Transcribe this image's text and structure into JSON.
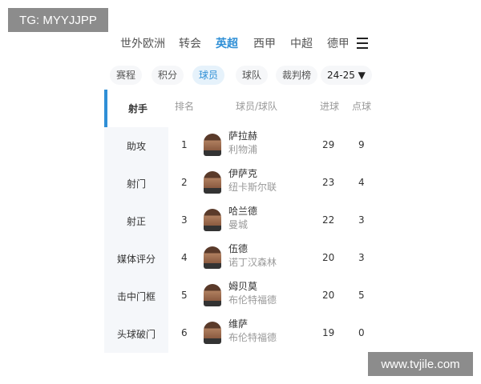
{
  "watermarks": {
    "top": "TG: MYYJJPP",
    "bottom": "www.tvjile.com"
  },
  "accent": "#2f8fd6",
  "nav": {
    "items": [
      "世外欧洲",
      "转会",
      "英超",
      "西甲",
      "中超",
      "德甲"
    ],
    "active": "英超",
    "menu_icon": "hamburger-icon"
  },
  "subtabs": {
    "items": [
      "赛程",
      "积分",
      "球员",
      "球队",
      "裁判榜"
    ],
    "active": "球员",
    "season": "24-25 ▼"
  },
  "sidebar": {
    "items": [
      "射手",
      "助攻",
      "射门",
      "射正",
      "媒体评分",
      "击中门框",
      "头球破门"
    ],
    "active": "射手"
  },
  "table": {
    "headers": [
      "排名",
      "球员/球队",
      "进球",
      "点球"
    ],
    "rows": [
      {
        "rank": "1",
        "name": "萨拉赫",
        "team": "利物浦",
        "goals": "29",
        "pens": "9"
      },
      {
        "rank": "2",
        "name": "伊萨克",
        "team": "纽卡斯尔联",
        "goals": "23",
        "pens": "4"
      },
      {
        "rank": "3",
        "name": "哈兰德",
        "team": "曼城",
        "goals": "22",
        "pens": "3"
      },
      {
        "rank": "4",
        "name": "伍德",
        "team": "诺丁汉森林",
        "goals": "20",
        "pens": "3"
      },
      {
        "rank": "5",
        "name": "姆贝莫",
        "team": "布伦特福德",
        "goals": "20",
        "pens": "5"
      },
      {
        "rank": "6",
        "name": "维萨",
        "team": "布伦特福德",
        "goals": "19",
        "pens": "0"
      }
    ]
  }
}
